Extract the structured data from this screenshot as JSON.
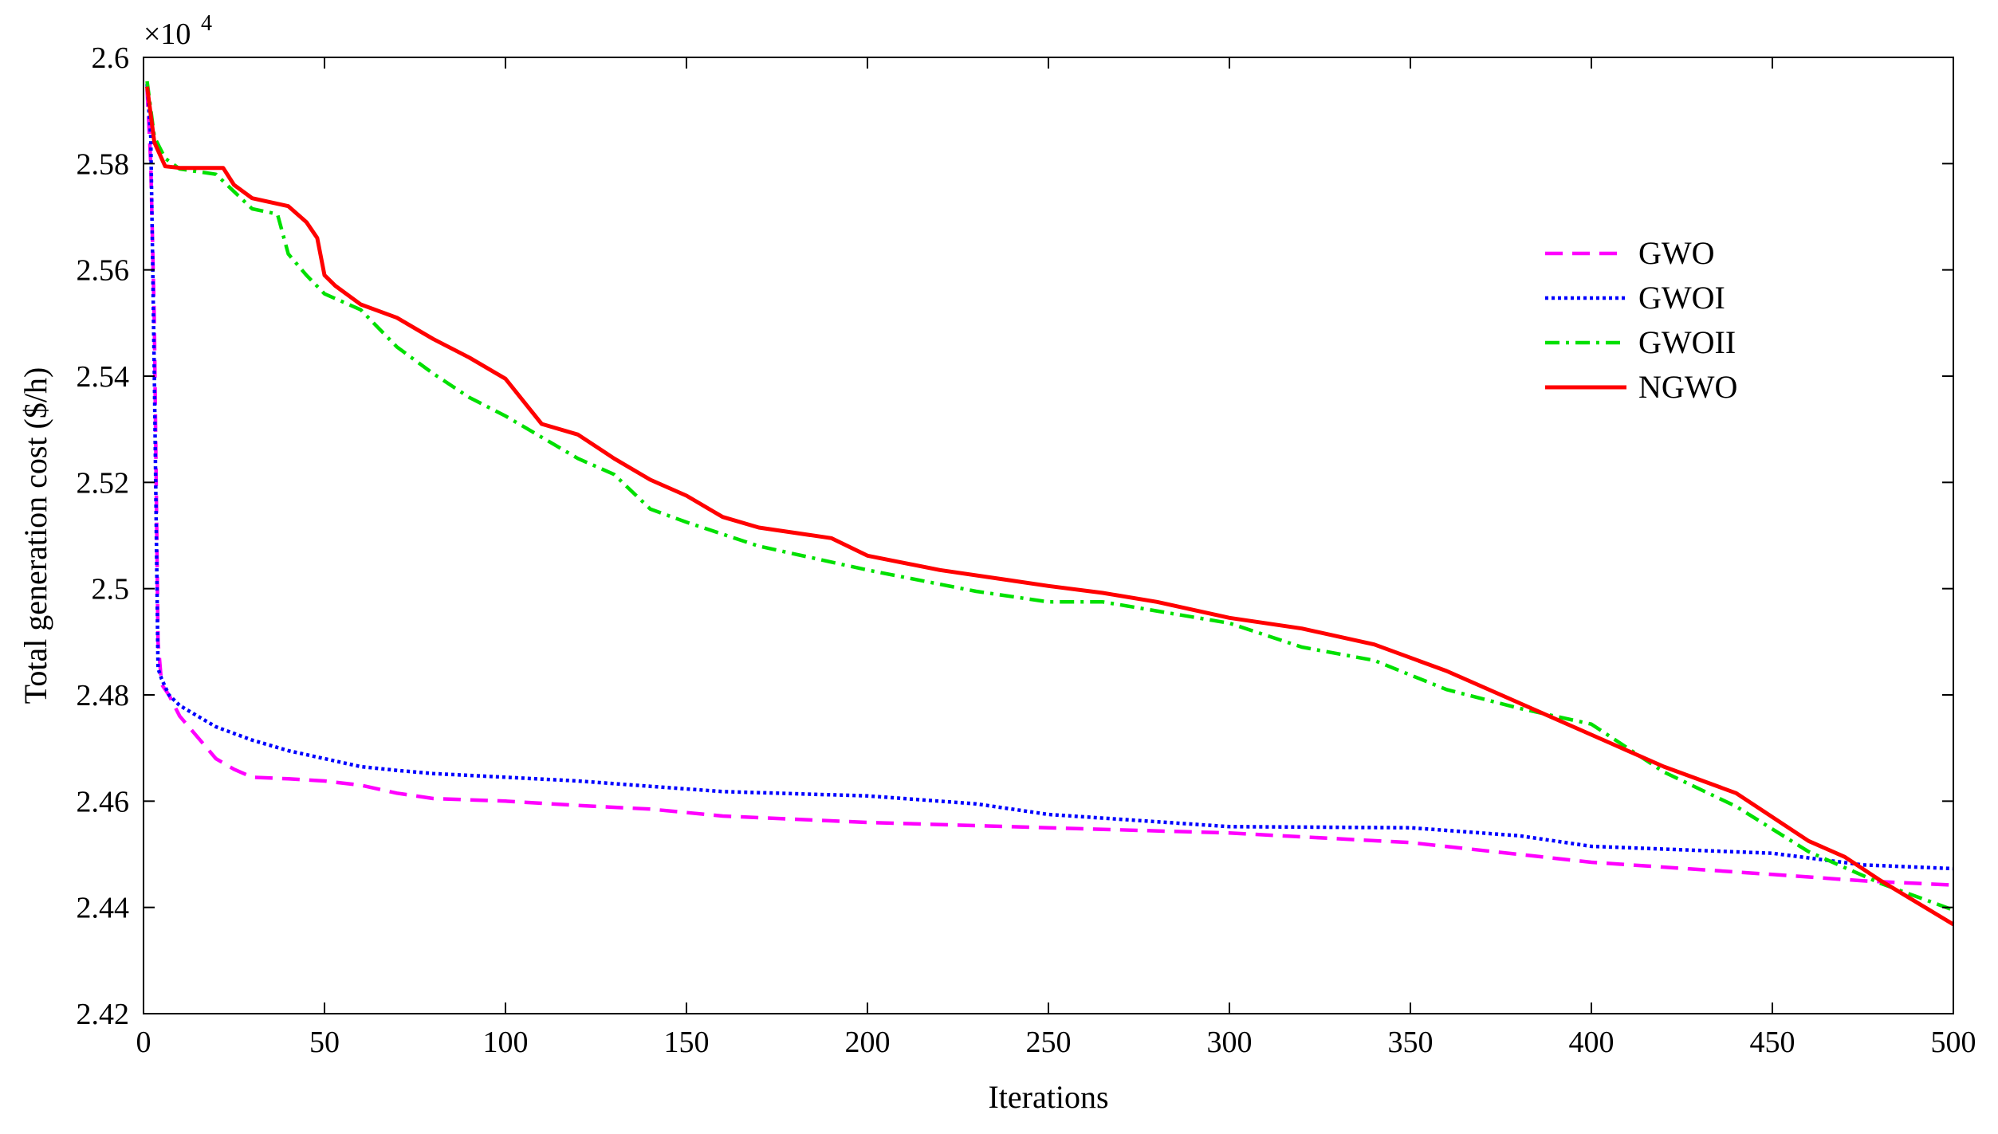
{
  "chart_data": {
    "type": "line",
    "title": "",
    "xlabel": "Iterations",
    "ylabel": "Total generation cost ($/h)",
    "y_multiplier_label": "×10",
    "y_multiplier_exponent": "4",
    "xlim": [
      0,
      500
    ],
    "ylim": [
      2.42,
      2.6
    ],
    "x_ticks": [
      0,
      50,
      100,
      150,
      200,
      250,
      300,
      350,
      400,
      450,
      500
    ],
    "x_tick_labels": [
      "0",
      "50",
      "100",
      "150",
      "200",
      "250",
      "300",
      "350",
      "400",
      "450",
      "500"
    ],
    "y_ticks": [
      2.42,
      2.44,
      2.46,
      2.48,
      2.5,
      2.52,
      2.54,
      2.56,
      2.58,
      2.6
    ],
    "y_tick_labels": [
      "2.42",
      "2.44",
      "2.46",
      "2.48",
      "2.5",
      "2.52",
      "2.54",
      "2.56",
      "2.58",
      "2.6"
    ],
    "grid": false,
    "legend_position": "upper-right",
    "series": [
      {
        "name": "GWO",
        "color": "#ff00ff",
        "style": "dashed",
        "x": [
          1,
          2,
          3,
          4,
          5,
          7,
          10,
          15,
          20,
          25,
          30,
          40,
          50,
          60,
          70,
          80,
          100,
          120,
          140,
          160,
          200,
          250,
          300,
          350,
          400,
          450,
          475,
          500
        ],
        "y": [
          2.594,
          2.58,
          2.55,
          2.49,
          2.482,
          2.48,
          2.476,
          2.472,
          2.468,
          2.466,
          2.4645,
          2.4642,
          2.4638,
          2.463,
          2.4615,
          2.4605,
          2.46,
          2.4592,
          2.4585,
          2.4572,
          2.456,
          2.455,
          2.454,
          2.4522,
          2.4485,
          2.4462,
          2.445,
          2.4442
        ]
      },
      {
        "name": "GWOI",
        "color": "#0000ff",
        "style": "dotted",
        "x": [
          1,
          2,
          3,
          4,
          5,
          7,
          10,
          15,
          20,
          30,
          40,
          50,
          60,
          70,
          80,
          100,
          120,
          140,
          160,
          200,
          230,
          250,
          300,
          350,
          380,
          400,
          450,
          475,
          500
        ],
        "y": [
          2.595,
          2.585,
          2.54,
          2.485,
          2.483,
          2.48,
          2.478,
          2.476,
          2.474,
          2.4715,
          2.4695,
          2.468,
          2.4665,
          2.4658,
          2.4652,
          2.4645,
          2.4638,
          2.4628,
          2.4618,
          2.461,
          2.4595,
          2.4575,
          2.4552,
          2.455,
          2.4535,
          2.4515,
          2.4502,
          2.448,
          2.4473
        ]
      },
      {
        "name": "GWOII",
        "color": "#00e000",
        "style": "dashdot",
        "x": [
          1,
          3,
          6,
          10,
          20,
          30,
          37,
          40,
          45,
          50,
          60,
          70,
          80,
          90,
          100,
          120,
          130,
          140,
          150,
          170,
          200,
          230,
          250,
          265,
          300,
          320,
          340,
          360,
          380,
          400,
          420,
          440,
          460,
          480,
          500
        ],
        "y": [
          2.5955,
          2.585,
          2.581,
          2.579,
          2.578,
          2.5715,
          2.5705,
          2.563,
          2.559,
          2.5555,
          2.5525,
          2.5455,
          2.5405,
          2.536,
          2.5325,
          2.5245,
          2.5215,
          2.515,
          2.5125,
          2.508,
          2.5035,
          2.4995,
          2.4975,
          2.4975,
          2.4935,
          2.489,
          2.4865,
          2.481,
          2.4775,
          2.4745,
          2.4655,
          2.459,
          2.4505,
          2.4445,
          2.4395
        ]
      },
      {
        "name": "NGWO",
        "color": "#ff0000",
        "style": "solid",
        "x": [
          1,
          3,
          6,
          10,
          22,
          25,
          30,
          40,
          45,
          48,
          50,
          53,
          60,
          70,
          80,
          90,
          100,
          110,
          120,
          130,
          140,
          150,
          160,
          170,
          190,
          200,
          220,
          250,
          265,
          280,
          300,
          320,
          340,
          360,
          380,
          400,
          420,
          440,
          460,
          470,
          480,
          500
        ],
        "y": [
          2.5945,
          2.584,
          2.5795,
          2.5792,
          2.5792,
          2.576,
          2.5735,
          2.572,
          2.569,
          2.566,
          2.559,
          2.557,
          2.5535,
          2.551,
          2.547,
          2.5435,
          2.5395,
          2.531,
          2.529,
          2.5245,
          2.5205,
          2.5175,
          2.5135,
          2.5115,
          2.5095,
          2.5062,
          2.5035,
          2.5005,
          2.4992,
          2.4975,
          2.4945,
          2.4925,
          2.4895,
          2.4845,
          2.4785,
          2.4725,
          2.4665,
          2.4615,
          2.4525,
          2.4495,
          2.445,
          2.4368
        ]
      }
    ]
  }
}
